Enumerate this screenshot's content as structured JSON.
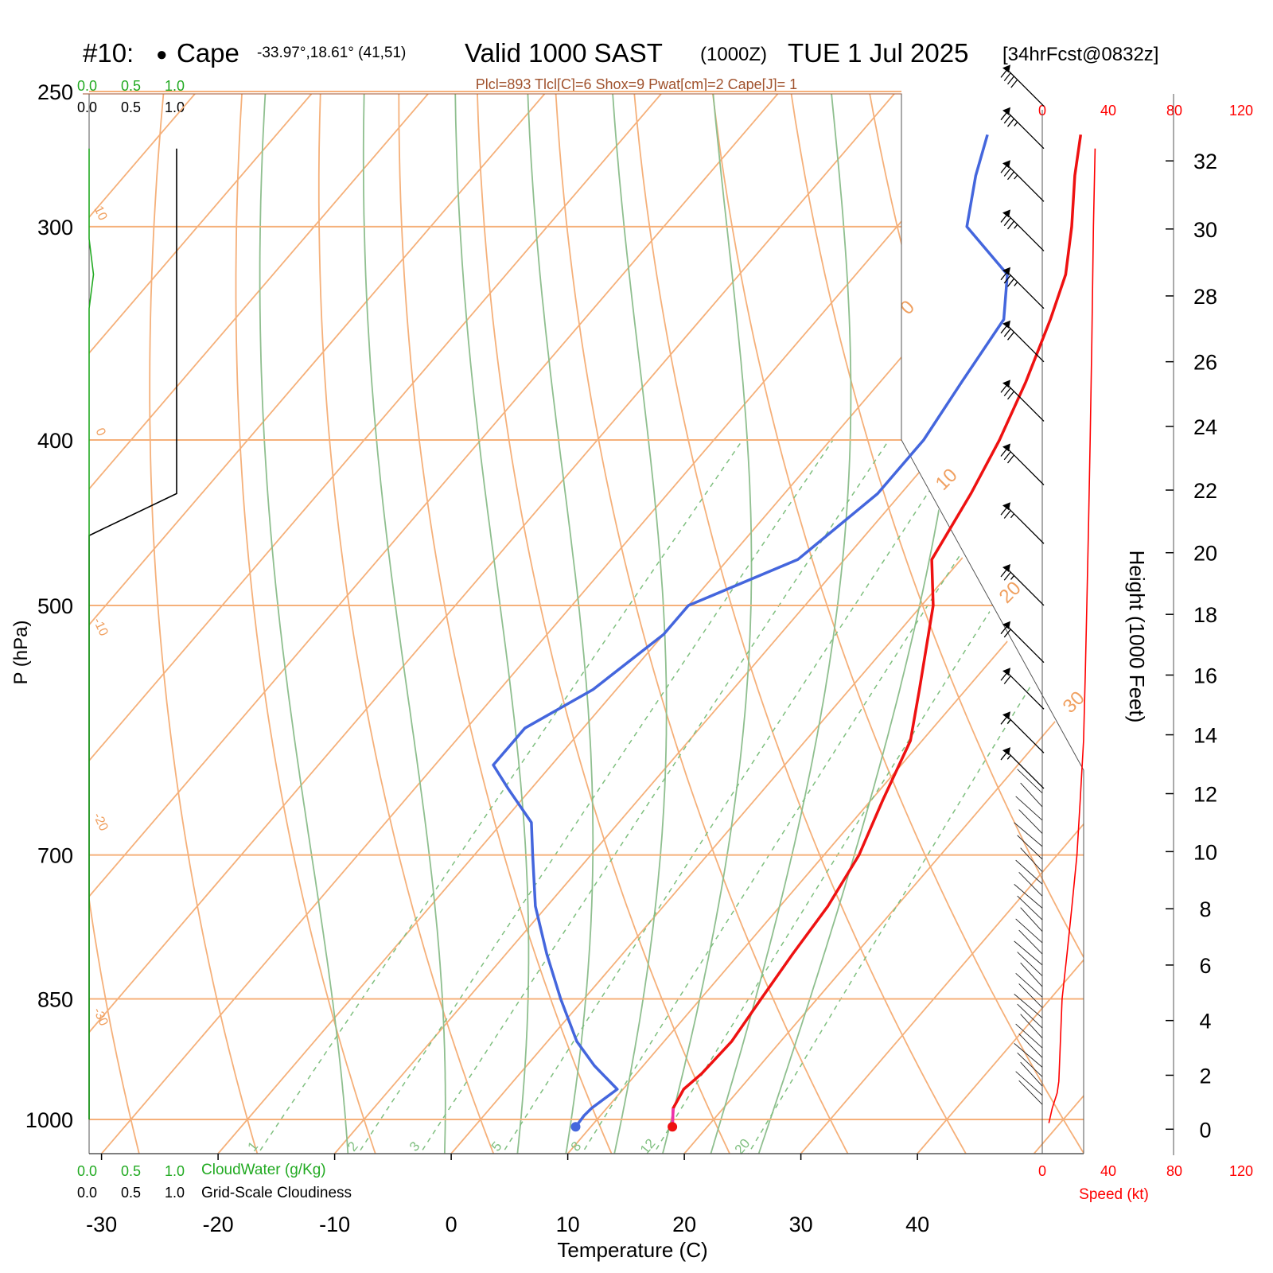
{
  "header": {
    "run": "#10:",
    "station_dot": "●",
    "station": "Cape",
    "coords": "-33.97°,18.61° (41,51)",
    "valid": "Valid 1000 SAST",
    "zulu": "(1000Z)",
    "date": "TUE 1 Jul 2025",
    "forecast": "[34hrFcst@0832z]",
    "indices": "Plcl=893 Tlcl[C]=6 Shox=9 Pwat[cm]=2 Cape[J]= 1"
  },
  "cloud_scale": {
    "cloudwater_ticks": [
      "0.0",
      "0.5",
      "1.0"
    ],
    "cloudiness_ticks": [
      "0.0",
      "0.5",
      "1.0"
    ],
    "cloudwater_label": "CloudWater (g/Kg)",
    "cloudiness_label": "Grid-Scale Cloudiness",
    "cloudwater_color": "#22aa22"
  },
  "speed_scale": {
    "ticks": [
      "0",
      "40",
      "80",
      "120"
    ],
    "label": "Speed (kt)",
    "color": "#ff0000"
  },
  "colors": {
    "temperature": "#ee1111",
    "dewpoint": "#4466dd",
    "isotherm": "#f5b07a",
    "dry_adiabat": "#f5b07a",
    "moist_adiabat": "#8fbf8f",
    "mixing_ratio": "#7fbf7f",
    "parcel_segment": "#ee33aa",
    "label_orange": "#f0a060"
  },
  "chart_data": {
    "type": "skew-t",
    "xlabel": "Temperature (C)",
    "ylabel": "P (hPa)",
    "y2label": "Height (1000 Feet)",
    "x_ticks": [
      -30,
      -20,
      -10,
      0,
      10,
      20,
      30,
      40
    ],
    "pressure_ticks": [
      250,
      300,
      400,
      500,
      700,
      850,
      1000
    ],
    "height_ticks": [
      0,
      2,
      4,
      6,
      8,
      10,
      12,
      14,
      16,
      18,
      20,
      22,
      24,
      26,
      28,
      30,
      32
    ],
    "dry_adiabat_labels": [
      "10",
      "0",
      "-10",
      "-20",
      "-30"
    ],
    "isotherm_labels": [
      "0",
      "10",
      "20",
      "30"
    ],
    "mixing_ratio_labels": [
      "1",
      "2",
      "3",
      "5",
      "8",
      "12",
      "20"
    ],
    "mixing_ratio_values": [
      1,
      2,
      3,
      5,
      8,
      12,
      20
    ],
    "temperature_profile": [
      [
        1010,
        17
      ],
      [
        985,
        15.7
      ],
      [
        960,
        15.2
      ],
      [
        940,
        15.6
      ],
      [
        900,
        15.8
      ],
      [
        850,
        15.2
      ],
      [
        800,
        14.6
      ],
      [
        750,
        14.1
      ],
      [
        700,
        13
      ],
      [
        650,
        11
      ],
      [
        600,
        9
      ],
      [
        560,
        6
      ],
      [
        500,
        1
      ],
      [
        470,
        -2.5
      ],
      [
        430,
        -4
      ],
      [
        400,
        -5.5
      ],
      [
        370,
        -7.5
      ],
      [
        340,
        -10
      ],
      [
        320,
        -12
      ],
      [
        300,
        -15
      ],
      [
        280,
        -18.5
      ],
      [
        265,
        -21
      ]
    ],
    "dewpoint_profile": [
      [
        1010,
        8.7
      ],
      [
        995,
        8.6
      ],
      [
        985,
        8.7
      ],
      [
        960,
        9.5
      ],
      [
        930,
        5.8
      ],
      [
        900,
        2.5
      ],
      [
        850,
        -2
      ],
      [
        800,
        -6.5
      ],
      [
        750,
        -11
      ],
      [
        700,
        -15
      ],
      [
        670,
        -17.5
      ],
      [
        640,
        -22
      ],
      [
        620,
        -25
      ],
      [
        590,
        -25
      ],
      [
        560,
        -22
      ],
      [
        520,
        -20
      ],
      [
        500,
        -20
      ],
      [
        470,
        -14
      ],
      [
        430,
        -12
      ],
      [
        400,
        -12
      ],
      [
        370,
        -13
      ],
      [
        340,
        -14
      ],
      [
        320,
        -17
      ],
      [
        300,
        -24
      ],
      [
        280,
        -27
      ],
      [
        265,
        -29
      ]
    ],
    "wind_barbs": [
      {
        "p": 255,
        "dir": 315,
        "kt": 40
      },
      {
        "p": 270,
        "dir": 315,
        "kt": 35
      },
      {
        "p": 290,
        "dir": 315,
        "kt": 35
      },
      {
        "p": 310,
        "dir": 315,
        "kt": 35
      },
      {
        "p": 335,
        "dir": 315,
        "kt": 35
      },
      {
        "p": 360,
        "dir": 315,
        "kt": 30
      },
      {
        "p": 390,
        "dir": 315,
        "kt": 30
      },
      {
        "p": 425,
        "dir": 315,
        "kt": 30
      },
      {
        "p": 460,
        "dir": 315,
        "kt": 25
      },
      {
        "p": 500,
        "dir": 315,
        "kt": 25
      },
      {
        "p": 540,
        "dir": 310,
        "kt": 20
      },
      {
        "p": 575,
        "dir": 310,
        "kt": 20
      },
      {
        "p": 610,
        "dir": 305,
        "kt": 15
      },
      {
        "p": 640,
        "dir": 300,
        "kt": 15
      }
    ],
    "wind_speed_profile": [
      [
        1005,
        4
      ],
      [
        995,
        5
      ],
      [
        985,
        6
      ],
      [
        965,
        9
      ],
      [
        950,
        10
      ],
      [
        900,
        11
      ],
      [
        850,
        12
      ],
      [
        800,
        15
      ],
      [
        750,
        18
      ],
      [
        700,
        21
      ],
      [
        650,
        23
      ],
      [
        600,
        25
      ],
      [
        550,
        26
      ],
      [
        500,
        27
      ],
      [
        450,
        28
      ],
      [
        400,
        29
      ],
      [
        350,
        30
      ],
      [
        300,
        31
      ],
      [
        270,
        32
      ]
    ],
    "cloudiness_profile": [
      [
        1000,
        0
      ],
      [
        500,
        0
      ],
      [
        455,
        0
      ],
      [
        430,
        1
      ],
      [
        270,
        1
      ]
    ],
    "cloudwater_profile": [
      [
        1000,
        0
      ],
      [
        335,
        0
      ],
      [
        320,
        0.05
      ],
      [
        305,
        0
      ],
      [
        270,
        0
      ]
    ]
  }
}
